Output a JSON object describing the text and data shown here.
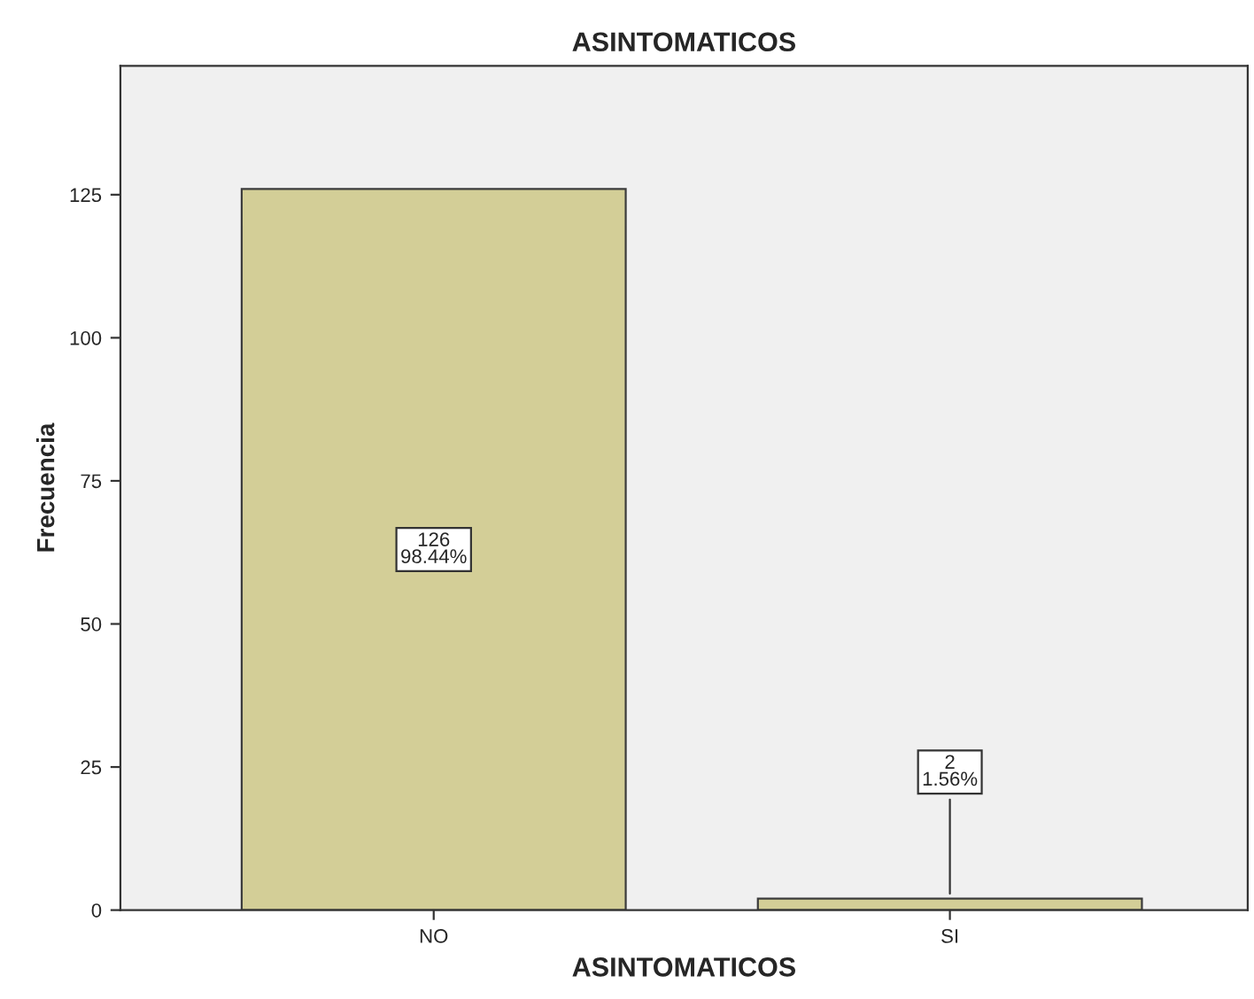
{
  "chart_data": {
    "type": "bar",
    "title": "ASINTOMATICOS",
    "xlabel": "ASINTOMATICOS",
    "ylabel": "Frecuencia",
    "categories": [
      "NO",
      "SI"
    ],
    "values": [
      126,
      2
    ],
    "value_labels": [
      "126\n98.44%",
      "2\n1.56%"
    ],
    "color": "#d3ce97",
    "ylim": [
      0,
      147.5
    ],
    "yticks": [
      0,
      25,
      50,
      75,
      100,
      125
    ],
    "grid": false,
    "legend": false
  }
}
